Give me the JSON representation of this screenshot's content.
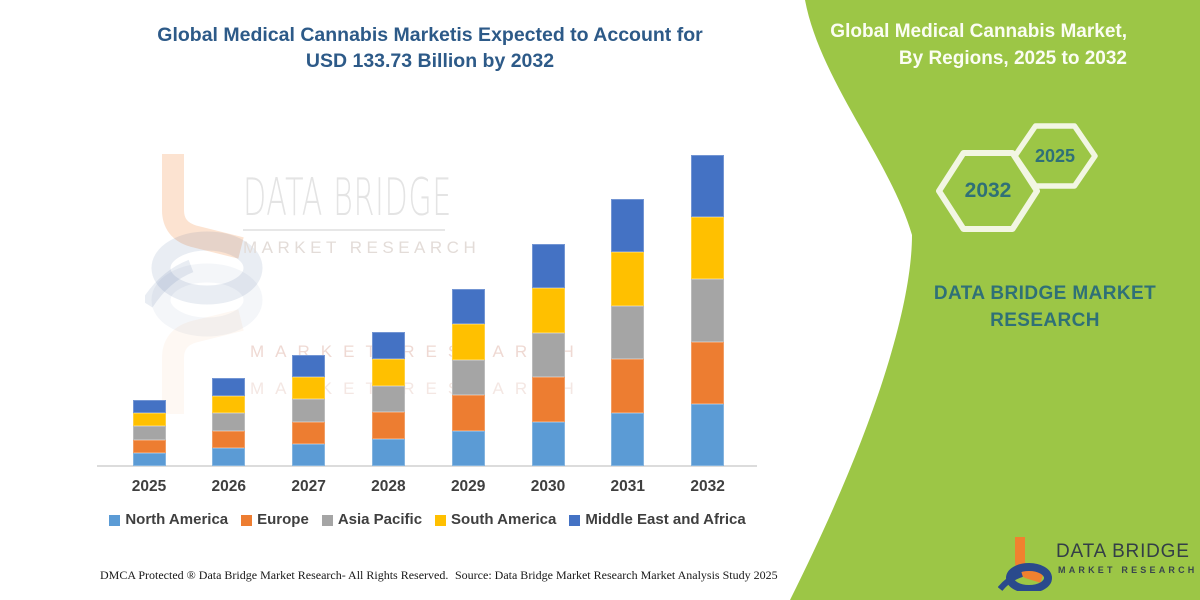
{
  "page": {
    "title_line1": "Global Medical Cannabis Marketis Expected to Account for",
    "title_line2": "USD 133.73 Billion by 2032"
  },
  "side_panel": {
    "bg_color": "#9CC646",
    "header_line1": "Global Medical Cannabis Market,",
    "header_line2": "By Regions, 2025 to 2032",
    "hexagon_left_label": "2032",
    "hexagon_right_label": "2025",
    "hexagon_outline_color": "#F2F6E3",
    "brand_line1": "DATA BRIDGE MARKET",
    "brand_line2": "RESEARCH",
    "accent_teal": "#2F7077"
  },
  "watermark": {
    "brand": "DATA BRIDGE",
    "sub": "MARKET RESEARCH",
    "reflection_row1": "MARKET RESEARCH",
    "reflection_row2": "MARKET RESEARCH"
  },
  "logo": {
    "name": "DATA BRIDGE",
    "sub": "MARKET RESEARCH",
    "orange": "#F0812F",
    "navy": "#2A4A8C"
  },
  "footer": {
    "dmca": "DMCA Protected ® Data Bridge Market Research-  All Rights Reserved.",
    "source": "Source: Data Bridge Market Research  Market Analysis Study 2025"
  },
  "chart_data": {
    "type": "bar",
    "stacked": true,
    "title": "Global Medical Cannabis Market, By Regions, 2025 to 2032",
    "unit": "USD Billion",
    "categories": [
      "2025",
      "2026",
      "2027",
      "2028",
      "2029",
      "2030",
      "2031",
      "2032"
    ],
    "series": [
      {
        "name": "North America",
        "color": "#5B9BD5",
        "values": [
          5.68,
          7.58,
          9.56,
          11.54,
          15.24,
          19.11,
          22.98,
          26.75
        ]
      },
      {
        "name": "Europe",
        "color": "#ED7D31",
        "values": [
          5.68,
          7.58,
          9.56,
          11.54,
          15.24,
          19.11,
          22.98,
          26.75
        ]
      },
      {
        "name": "Asia Pacific",
        "color": "#A5A5A5",
        "values": [
          5.68,
          7.58,
          9.56,
          11.54,
          15.24,
          19.11,
          22.98,
          26.75
        ]
      },
      {
        "name": "South America",
        "color": "#FFC000",
        "values": [
          5.68,
          7.58,
          9.56,
          11.54,
          15.24,
          19.11,
          22.98,
          26.75
        ]
      },
      {
        "name": "Middle East and Africa",
        "color": "#4472C4",
        "values": [
          5.68,
          7.58,
          9.56,
          11.54,
          15.24,
          19.11,
          22.98,
          26.75
        ]
      }
    ],
    "totals_usd_billion": [
      28.4,
      37.9,
      47.8,
      57.7,
      76.2,
      95.6,
      114.9,
      133.73
    ],
    "highlight_total": "USD 133.73 Billion by 2032",
    "xlabel": "",
    "ylabel": "",
    "ylim": [
      0,
      140
    ],
    "grid": false,
    "legend_position": "bottom"
  }
}
